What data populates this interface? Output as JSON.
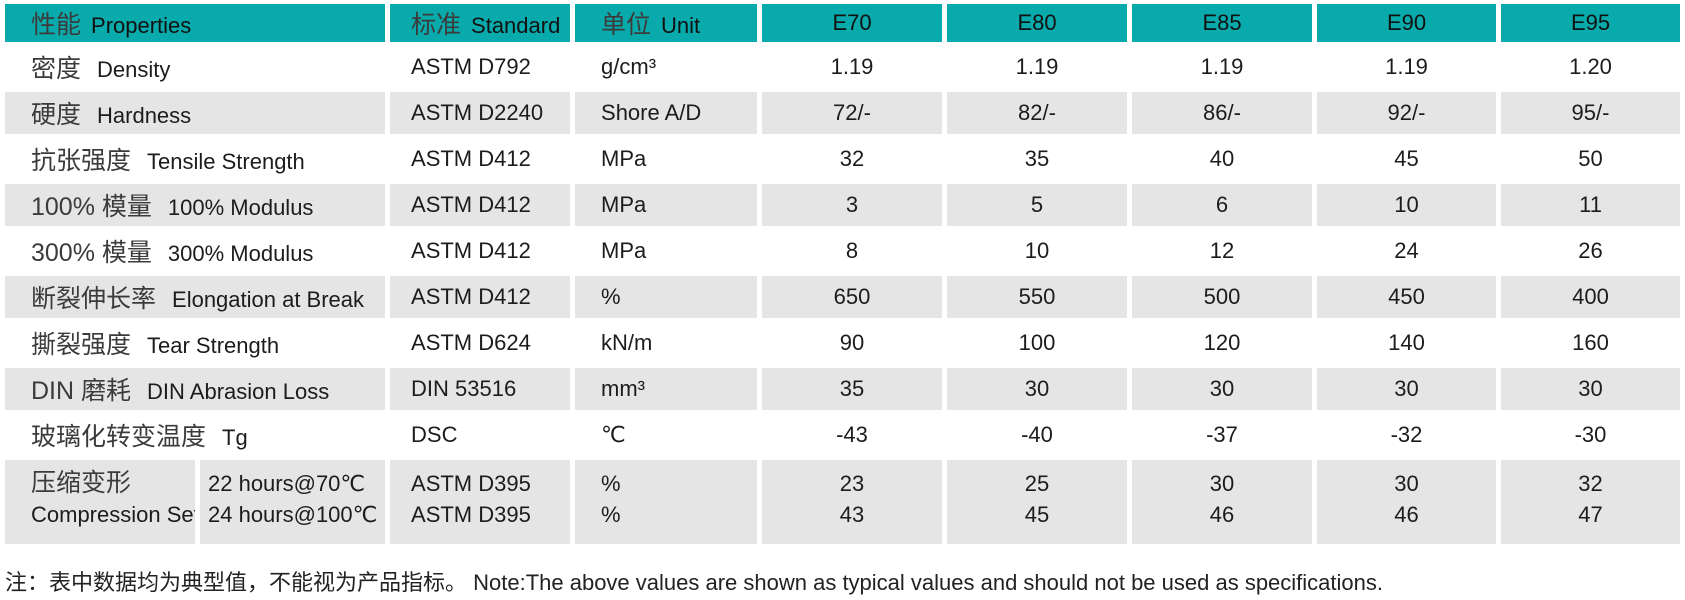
{
  "header": {
    "properties_zh": "性能",
    "properties_en": "Properties",
    "standard_zh": "标准",
    "standard_en": "Standard",
    "unit_zh": "单位",
    "unit_en": "Unit",
    "grades": [
      "E70",
      "E80",
      "E85",
      "E90",
      "E95"
    ]
  },
  "rows": [
    {
      "zh": "密度",
      "en": "Density",
      "standard": "ASTM D792",
      "unit": "g/cm³",
      "values": [
        "1.19",
        "1.19",
        "1.19",
        "1.19",
        "1.20"
      ]
    },
    {
      "zh": "硬度",
      "en": "Hardness",
      "standard": "ASTM D2240",
      "unit": "Shore A/D",
      "values": [
        "72/-",
        "82/-",
        "86/-",
        "92/-",
        "95/-"
      ]
    },
    {
      "zh": "抗张强度",
      "en": "Tensile Strength",
      "standard": "ASTM D412",
      "unit": "MPa",
      "values": [
        "32",
        "35",
        "40",
        "45",
        "50"
      ]
    },
    {
      "zh": "100% 模量",
      "en": "100% Modulus",
      "standard": "ASTM D412",
      "unit": "MPa",
      "values": [
        "3",
        "5",
        "6",
        "10",
        "11"
      ]
    },
    {
      "zh": "300% 模量",
      "en": "300% Modulus",
      "standard": "ASTM D412",
      "unit": "MPa",
      "values": [
        "8",
        "10",
        "12",
        "24",
        "26"
      ]
    },
    {
      "zh": "断裂伸长率",
      "en": "Elongation at Break",
      "standard": "ASTM D412",
      "unit": "%",
      "values": [
        "650",
        "550",
        "500",
        "450",
        "400"
      ]
    },
    {
      "zh": "撕裂强度",
      "en": "Tear Strength",
      "standard": "ASTM D624",
      "unit": "kN/m",
      "values": [
        "90",
        "100",
        "120",
        "140",
        "160"
      ]
    },
    {
      "zh": "DIN 磨耗",
      "en": "DIN Abrasion Loss",
      "standard": "DIN 53516",
      "unit": "mm³",
      "values": [
        "35",
        "30",
        "30",
        "30",
        "30"
      ]
    },
    {
      "zh": "玻璃化转变温度",
      "en": "Tg",
      "standard": "DSC",
      "unit": "℃",
      "values": [
        "-43",
        "-40",
        "-37",
        "-32",
        "-30"
      ]
    }
  ],
  "compression": {
    "zh": "压缩变形",
    "en": "Compression Set",
    "conditions": [
      "22 hours@70℃",
      "24 hours@100℃"
    ],
    "standards": [
      "ASTM D395",
      "ASTM D395"
    ],
    "units": [
      "%",
      "%"
    ],
    "values": [
      [
        "23",
        "43"
      ],
      [
        "25",
        "45"
      ],
      [
        "30",
        "46"
      ],
      [
        "30",
        "46"
      ],
      [
        "32",
        "47"
      ]
    ]
  },
  "footnote": "注：表中数据均为典型值，不能视为产品指标。 Note:The above values are shown as typical values and should not be used as specifications.",
  "colors": {
    "header_teal": "#09aaab",
    "row_gray": "#e5e5e5"
  }
}
